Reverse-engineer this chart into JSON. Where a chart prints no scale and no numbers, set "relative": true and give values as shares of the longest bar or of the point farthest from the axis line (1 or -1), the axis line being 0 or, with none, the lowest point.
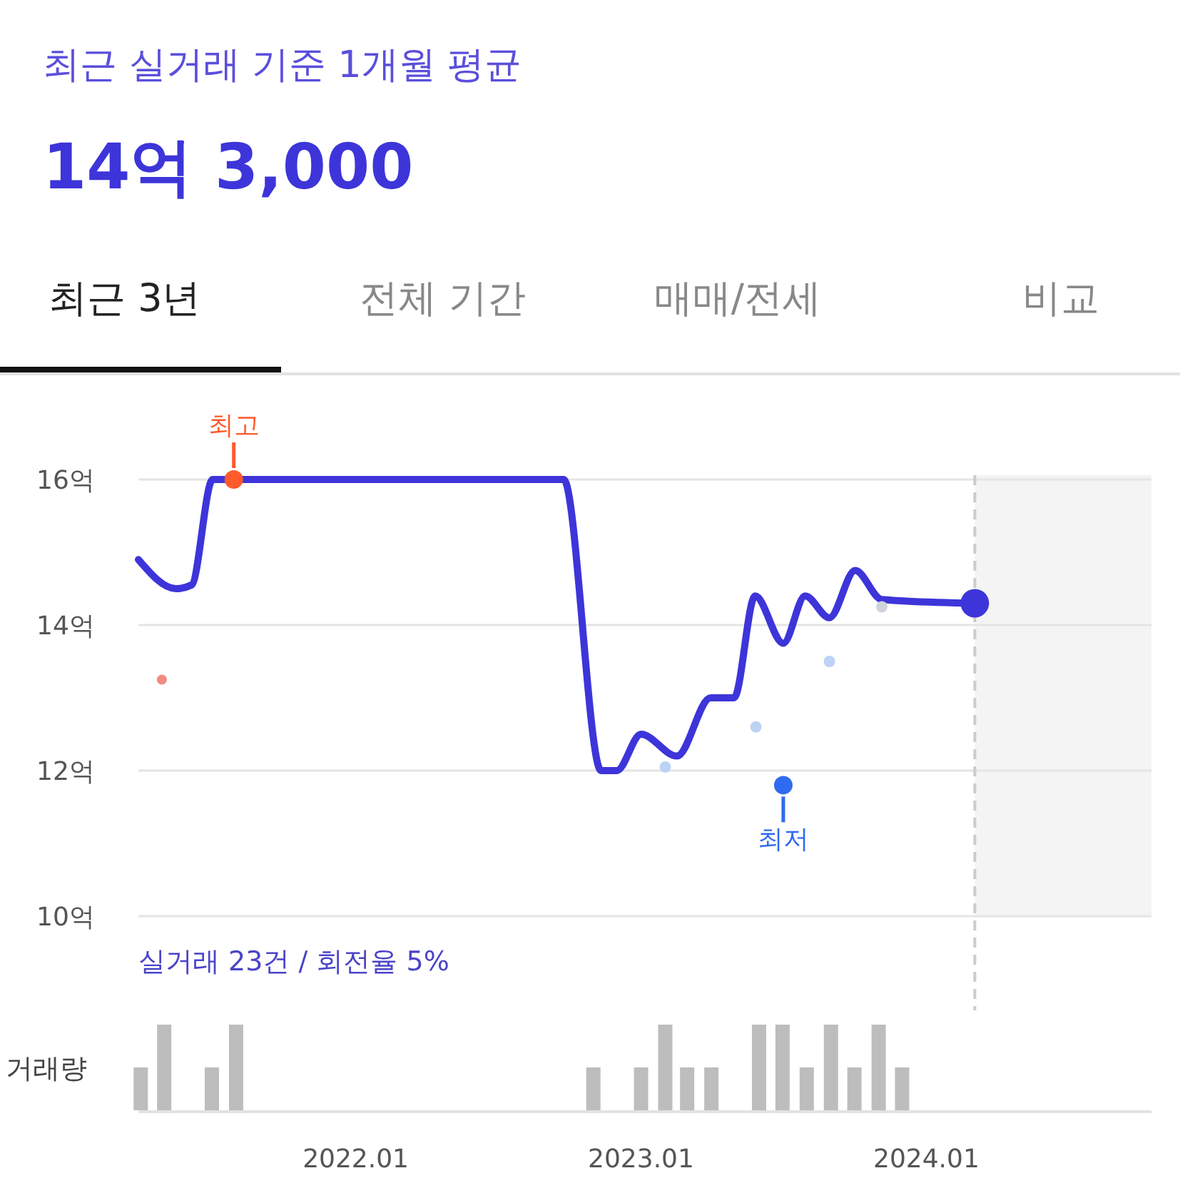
{
  "chart_data": [
    {
      "type": "other",
      "title": "최근 실거래 기준 1개월 평균",
      "subtitle": "14억 3,000",
      "annotations": [
        "최근 3년",
        "전체 기간",
        "매매/전세",
        "비교"
      ]
    },
    {
      "type": "line",
      "xlim": [
        "2021-03-29",
        "2024-10-15"
      ],
      "ylim": [
        10,
        16
      ],
      "yticks": [
        {
          "value": 10,
          "label": "10억"
        },
        {
          "value": 12,
          "label": "12억"
        },
        {
          "value": 14,
          "label": "14억"
        },
        {
          "value": 16,
          "label": "16억"
        }
      ],
      "grid": "y",
      "tick_labels": "y",
      "series": [
        {
          "type": "line",
          "color": "#3d35d9",
          "marker": "none",
          "x": [
            "2021-03-29",
            "2021-05-16",
            "2021-06-05",
            "2021-07-02",
            "2022-09-24",
            "2022-11-11",
            "2022-12-01",
            "2023-01-01",
            "2023-02-16",
            "2023-03-31",
            "2023-04-30",
            "2023-05-27",
            "2023-07-02",
            "2023-07-30",
            "2023-08-30",
            "2023-10-02",
            "2023-11-05",
            "2024-03-03"
          ],
          "values": [
            14.9,
            14.5,
            14.55,
            16,
            16,
            12,
            12,
            12.5,
            12.2,
            13,
            13,
            14.4,
            13.75,
            14.4,
            14.1,
            14.75,
            14.35,
            14.3
          ]
        },
        {
          "type": "scatter",
          "color": "#f28b82",
          "marker": "circle",
          "x": [
            "2021-04-28"
          ],
          "values": [
            13.25
          ]
        },
        {
          "type": "scatter",
          "color": "#bcd3f5",
          "marker": "circle",
          "x": [
            "2023-02-01",
            "2023-05-28",
            "2023-08-30"
          ],
          "values": [
            12.05,
            12.6,
            13.5
          ]
        },
        {
          "type": "scatter",
          "color": "#d0d4da",
          "marker": "circle",
          "x": [
            "2023-11-05"
          ],
          "values": [
            14.25
          ]
        },
        {
          "type": "scatter",
          "color": "#ff5a2c",
          "marker": "circle",
          "x": [
            "2021-07-29"
          ],
          "values": [
            16
          ]
        },
        {
          "type": "scatter",
          "color": "#2f6bf0",
          "marker": "circle",
          "x": [
            "2023-07-02"
          ],
          "values": [
            11.8
          ]
        },
        {
          "type": "scatter",
          "color": "#3d35d9",
          "marker": "circle",
          "x": [
            "2024-03-03"
          ],
          "values": [
            14.3
          ]
        }
      ],
      "ref_lines": [
        {
          "axis": "x",
          "value": "2024-03-03",
          "color": "#cccccc",
          "line_style": "dashed"
        }
      ],
      "bands": [
        {
          "axis": "x",
          "from": "2024-03-03",
          "to": "2024-10-15",
          "color": "#f4f4f4"
        }
      ],
      "annotations": [
        {
          "text": "최고",
          "x": "2021-07-29",
          "y": 16
        },
        {
          "text": "최저",
          "x": "2023-07-02",
          "y": 11.8
        },
        "실거래 23건 / 회전율 5%"
      ]
    },
    {
      "type": "bar",
      "relative": true,
      "ylabel": "거래량",
      "color": "#bdbdbd",
      "tick_labels": "x",
      "xlim": [
        "2021-03-29",
        "2024-10-15"
      ],
      "xticks": [
        {
          "value": "2022-01",
          "label": "2022.01"
        },
        {
          "value": "2023-01",
          "label": "2023.01"
        },
        {
          "value": "2024-01",
          "label": "2024.01"
        }
      ],
      "x": [
        "2021-04",
        "2021-05",
        "2021-07",
        "2021-08",
        "2022-11",
        "2023-01",
        "2023-02",
        "2023-03",
        "2023-04",
        "2023-06",
        "2023-07",
        "2023-08",
        "2023-09",
        "2023-10",
        "2023-11",
        "2023-12"
      ],
      "values": [
        0.5,
        1,
        0.5,
        1,
        0.5,
        0.5,
        1,
        0.5,
        0.5,
        1,
        1,
        0.5,
        1,
        0.5,
        1,
        0.5
      ]
    }
  ]
}
